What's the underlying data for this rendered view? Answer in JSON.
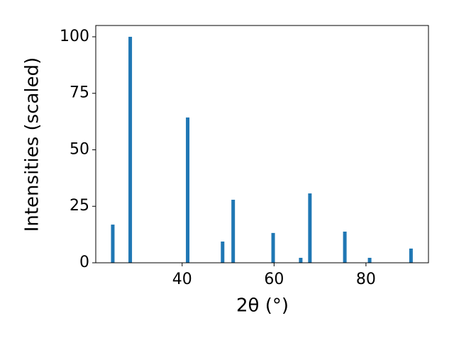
{
  "chart_data": {
    "type": "bar",
    "xlabel": "2θ (°)",
    "ylabel": "Intensities (scaled)",
    "x": [
      24.9,
      28.7,
      41.2,
      48.8,
      51.1,
      59.8,
      65.8,
      67.8,
      75.4,
      80.8,
      89.8
    ],
    "values": [
      16.9,
      100,
      64.3,
      9.4,
      27.9,
      13.2,
      2.2,
      30.7,
      13.8,
      2.2,
      6.3
    ],
    "color": "#1f77b4",
    "xlim": [
      21.2,
      93.6
    ],
    "ylim": [
      0,
      105
    ],
    "xticks": [
      40,
      60,
      80
    ],
    "yticks": [
      0,
      25,
      50,
      75,
      100
    ],
    "grid": false
  }
}
